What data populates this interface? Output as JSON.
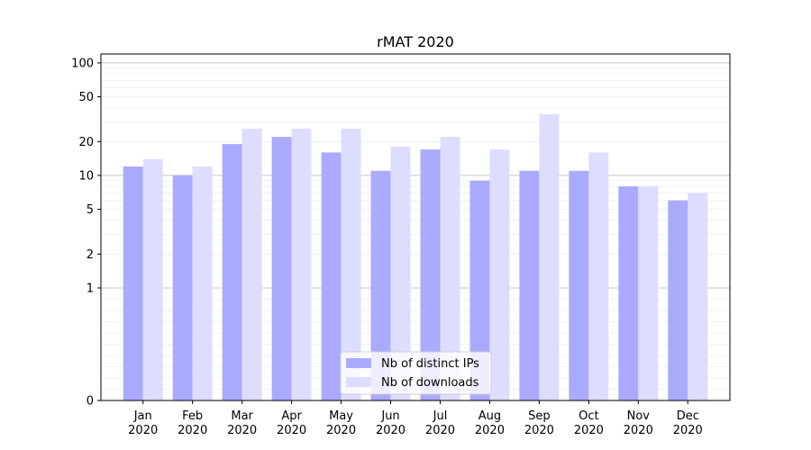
{
  "chart_data": {
    "type": "bar",
    "title": "rMAT 2020",
    "xlabel": "",
    "ylabel": "",
    "yscale": "symlog",
    "ylim": [
      0,
      120
    ],
    "y_ticks": [
      0,
      1,
      2,
      5,
      10,
      20,
      50,
      100
    ],
    "categories": [
      [
        "Jan",
        "2020"
      ],
      [
        "Feb",
        "2020"
      ],
      [
        "Mar",
        "2020"
      ],
      [
        "Apr",
        "2020"
      ],
      [
        "May",
        "2020"
      ],
      [
        "Jun",
        "2020"
      ],
      [
        "Jul",
        "2020"
      ],
      [
        "Aug",
        "2020"
      ],
      [
        "Sep",
        "2020"
      ],
      [
        "Oct",
        "2020"
      ],
      [
        "Nov",
        "2020"
      ],
      [
        "Dec",
        "2020"
      ]
    ],
    "series": [
      {
        "name": "Nb of distinct IPs",
        "color": "#aaaaff",
        "values": [
          12,
          10,
          19,
          22,
          16,
          11,
          17,
          9,
          11,
          11,
          8,
          6
        ]
      },
      {
        "name": "Nb of downloads",
        "color": "#ddddff",
        "values": [
          14,
          12,
          26,
          26,
          26,
          18,
          22,
          17,
          35,
          16,
          8,
          7
        ]
      }
    ],
    "grid": true,
    "legend_position": "bottom-center"
  }
}
